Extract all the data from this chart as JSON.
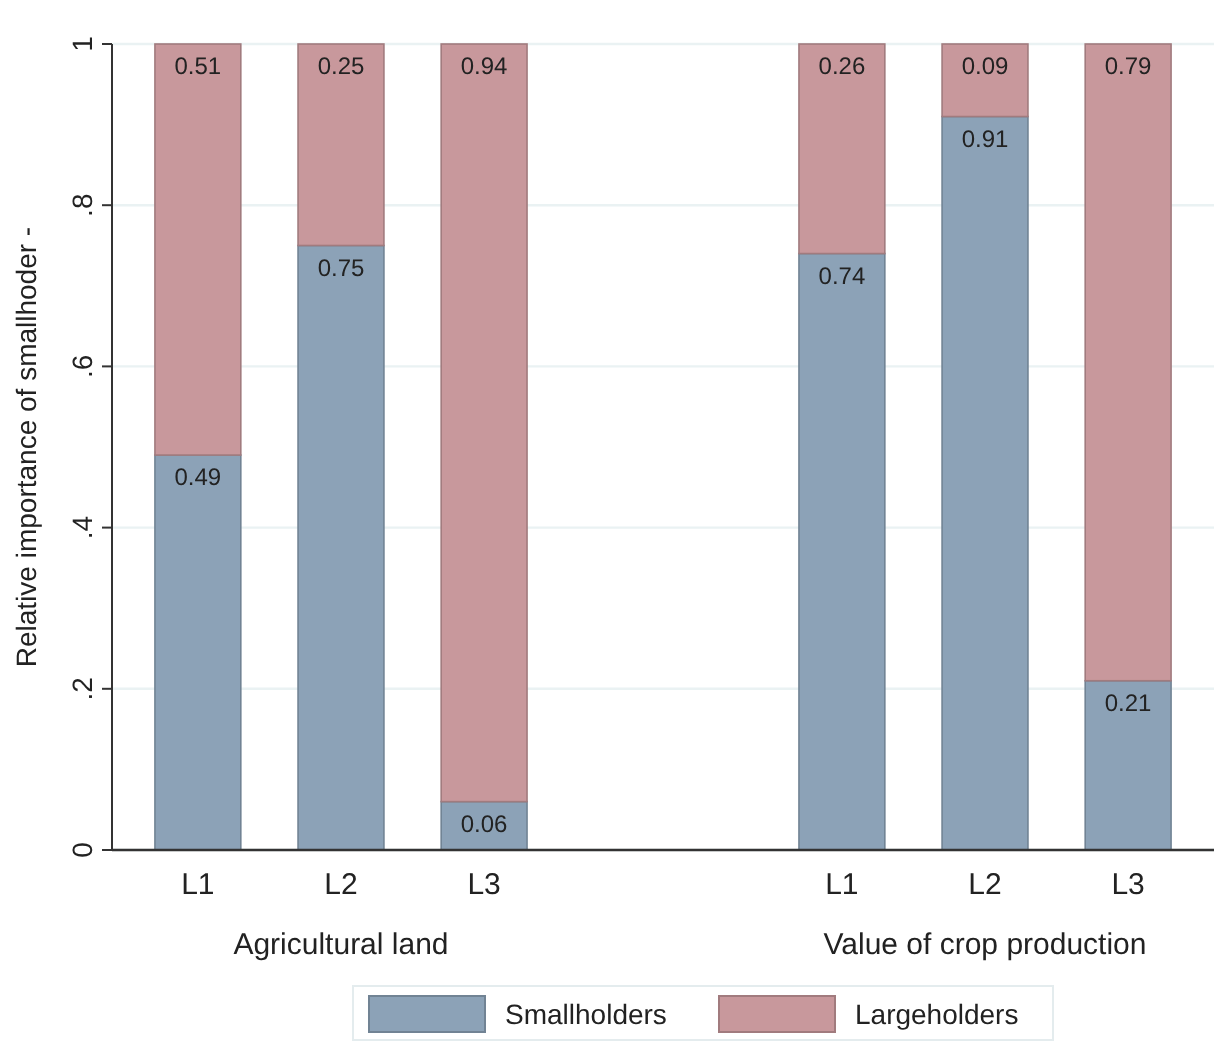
{
  "chart_data": {
    "type": "bar",
    "stacked": true,
    "ylabel": "Relative importance of smallhoder -",
    "categories": [
      "L1",
      "L2",
      "L3",
      "L1",
      "L2",
      "L3"
    ],
    "series": [
      {
        "name": "Smallholders",
        "color": "#8ca2b7",
        "values": [
          0.49,
          0.75,
          0.06,
          0.74,
          0.91,
          0.21
        ]
      },
      {
        "name": "Largeholders",
        "color": "#c8989c",
        "values": [
          0.51,
          0.25,
          0.94,
          0.26,
          0.09,
          0.79
        ]
      }
    ],
    "annotations": [
      "Agricultural land",
      "Value of crop production"
    ],
    "ylim": [
      0,
      1
    ],
    "yticks": [
      {
        "value": 0,
        "label": "0"
      },
      {
        "value": 0.2,
        "label": ".2"
      },
      {
        "value": 0.4,
        "label": ".4"
      },
      {
        "value": 0.6,
        "label": ".6"
      },
      {
        "value": 0.8,
        "label": ".8"
      },
      {
        "value": 1,
        "label": "1"
      }
    ],
    "grid": "y",
    "data_labels": true,
    "legend": "bottom"
  }
}
